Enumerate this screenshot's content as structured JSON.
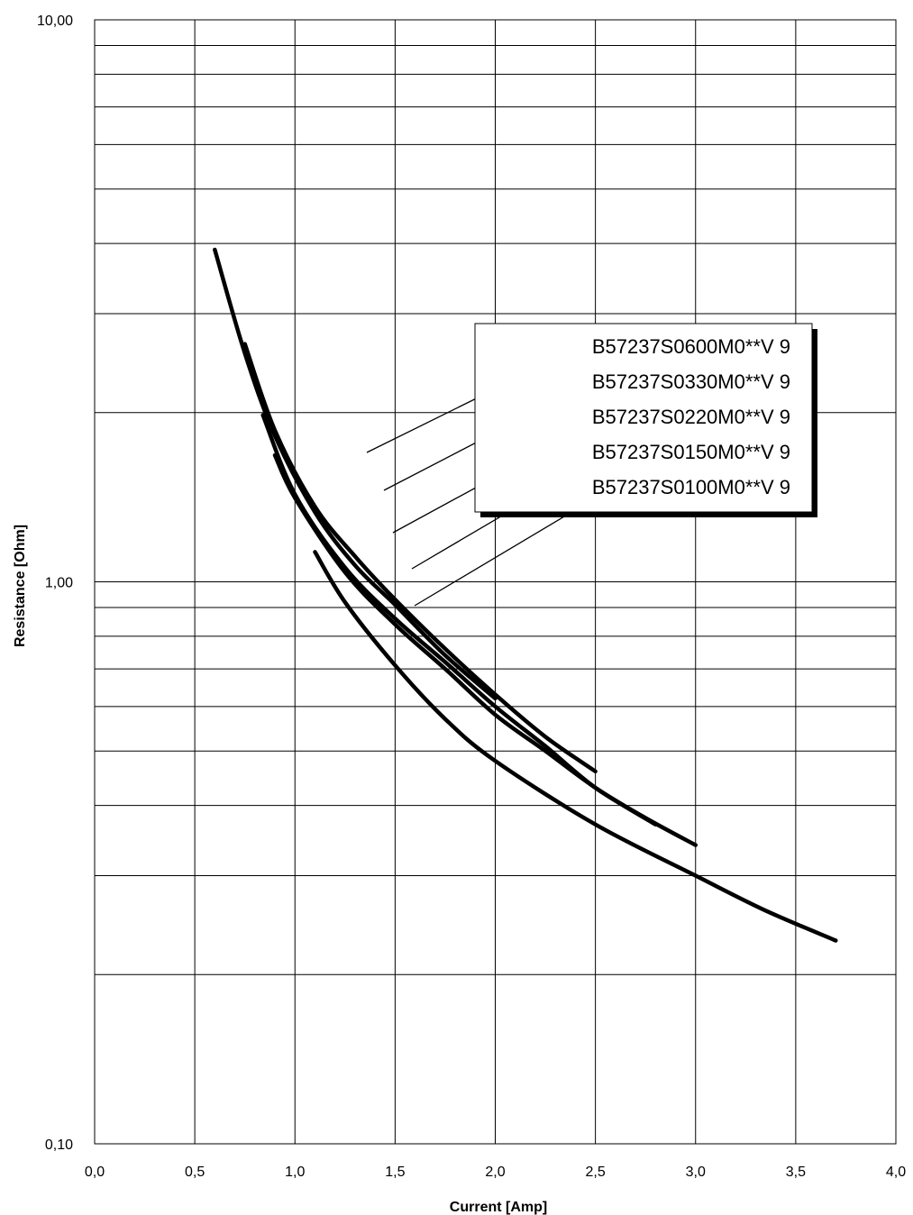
{
  "chart_data": {
    "type": "line",
    "title": "",
    "xlabel": "Current [Amp]",
    "ylabel": "Resistance [Ohm]",
    "xlim": [
      0,
      4
    ],
    "ylim": [
      0.1,
      10
    ],
    "yscale": "log",
    "grid": true,
    "x_ticks": [
      "0,0",
      "0,5",
      "1,0",
      "1,5",
      "2,0",
      "2,5",
      "3,0",
      "3,5",
      "4,0"
    ],
    "y_ticks": [
      "0,10",
      "1,00",
      "10,00"
    ],
    "legend_position": "upper-right",
    "series": [
      {
        "name": "B57237S0600M0**V 9",
        "x": [
          0.6,
          0.75,
          0.9,
          1.1,
          1.3,
          1.5,
          1.75,
          2.0
        ],
        "y": [
          3.9,
          2.55,
          1.82,
          1.33,
          1.07,
          0.91,
          0.74,
          0.62
        ]
      },
      {
        "name": "B57237S0330M0**V 9",
        "x": [
          0.75,
          0.9,
          1.1,
          1.3,
          1.5,
          1.75,
          2.0,
          2.25,
          2.5
        ],
        "y": [
          2.65,
          1.86,
          1.36,
          1.11,
          0.93,
          0.76,
          0.63,
          0.53,
          0.46
        ]
      },
      {
        "name": "B57237S0220M0**V 9",
        "x": [
          0.84,
          1.0,
          1.25,
          1.5,
          1.75,
          2.0,
          2.25,
          2.5,
          2.8
        ],
        "y": [
          1.98,
          1.43,
          1.06,
          0.86,
          0.72,
          0.6,
          0.51,
          0.43,
          0.37
        ]
      },
      {
        "name": "B57237S0150M0**V 9",
        "x": [
          0.9,
          1.0,
          1.25,
          1.5,
          1.75,
          2.0,
          2.25,
          2.5,
          2.75,
          3.0
        ],
        "y": [
          1.68,
          1.41,
          1.04,
          0.84,
          0.7,
          0.58,
          0.5,
          0.43,
          0.38,
          0.34
        ]
      },
      {
        "name": "B57237S0100M0**V 9",
        "x": [
          1.1,
          1.25,
          1.5,
          1.75,
          2.0,
          2.5,
          3.0,
          3.35,
          3.7
        ],
        "y": [
          1.13,
          0.92,
          0.71,
          0.57,
          0.48,
          0.37,
          0.3,
          0.26,
          0.23
        ]
      }
    ]
  }
}
